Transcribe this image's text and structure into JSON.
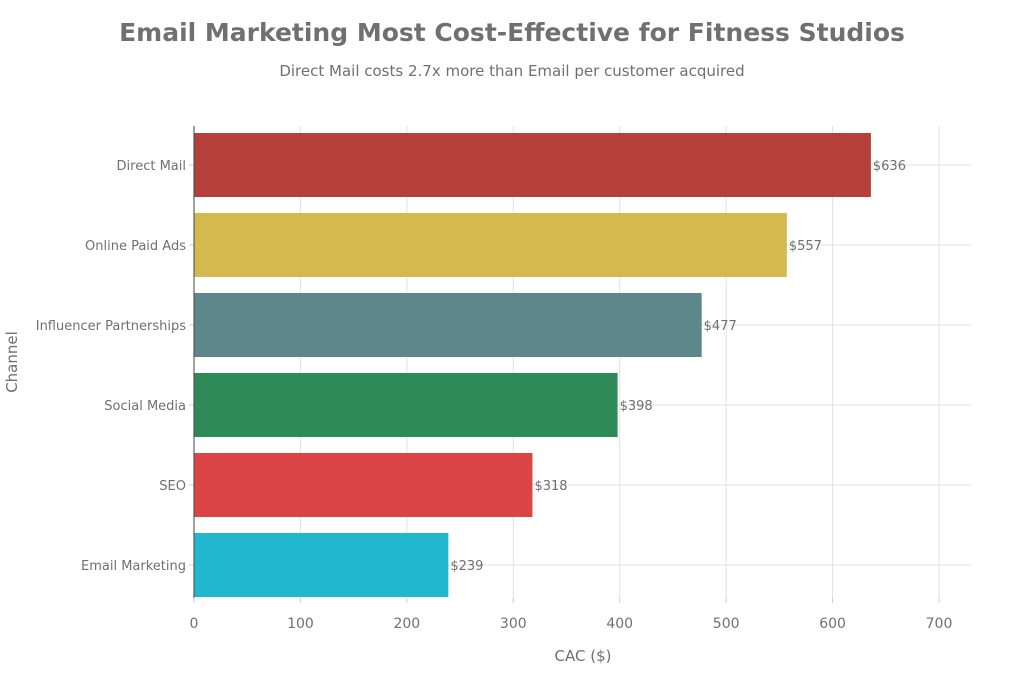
{
  "chart_data": {
    "type": "bar",
    "orientation": "horizontal",
    "title": "Email Marketing Most Cost-Effective for Fitness Studios",
    "subtitle": "Direct Mail costs 2.7x more than Email per customer acquired",
    "xlabel": "CAC ($)",
    "ylabel": "Channel",
    "xlim": [
      0,
      731
    ],
    "xticks": [
      0,
      100,
      200,
      300,
      400,
      500,
      600,
      700
    ],
    "grid": true,
    "categories": [
      "Direct Mail",
      "Online Paid Ads",
      "Influencer Partnerships",
      "Social Media",
      "SEO",
      "Email Marketing"
    ],
    "values": [
      636,
      557,
      477,
      398,
      318,
      239
    ],
    "data_labels": [
      "$636",
      "$557",
      "$477",
      "$398",
      "$318",
      "$239"
    ],
    "colors": [
      "#b5403b",
      "#d3b94e",
      "#5e878c",
      "#2e8b57",
      "#db4545",
      "#21b8ce"
    ]
  }
}
